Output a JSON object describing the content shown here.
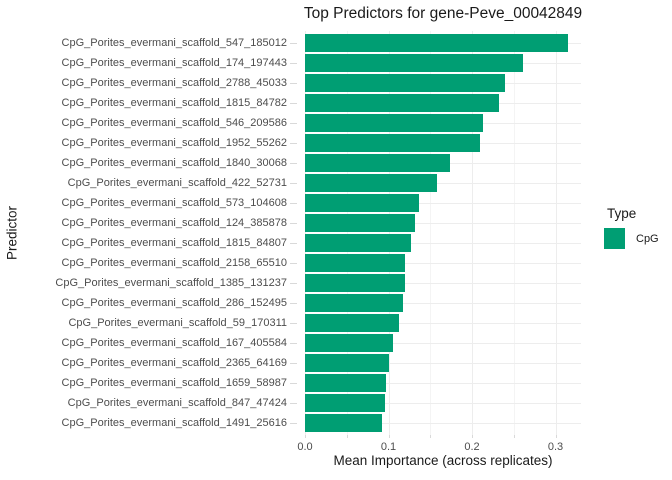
{
  "chart_data": {
    "type": "bar",
    "orientation": "horizontal",
    "title": "Top Predictors for gene-Peve_00042849",
    "xlabel": "Mean Importance (across replicates)",
    "ylabel": "Predictor",
    "xlim": [
      0,
      0.33
    ],
    "x_ticks": [
      0,
      0.1,
      0.2,
      0.3
    ],
    "x_tick_labels": [
      "0.0",
      "0.1",
      "0.2",
      "0.3"
    ],
    "x_minor_ticks": [
      0.05,
      0.15,
      0.25
    ],
    "grid": true,
    "legend_position": "right",
    "legend": {
      "title": "Type",
      "items": [
        {
          "label": "CpG",
          "color": "#009E73"
        }
      ]
    },
    "bar_color": "#009E73",
    "categories": [
      "CpG_Porites_evermani_scaffold_547_185012",
      "CpG_Porites_evermani_scaffold_174_197443",
      "CpG_Porites_evermani_scaffold_2788_45033",
      "CpG_Porites_evermani_scaffold_1815_84782",
      "CpG_Porites_evermani_scaffold_546_209586",
      "CpG_Porites_evermani_scaffold_1952_55262",
      "CpG_Porites_evermani_scaffold_1840_30068",
      "CpG_Porites_evermani_scaffold_422_52731",
      "CpG_Porites_evermani_scaffold_573_104608",
      "CpG_Porites_evermani_scaffold_124_385878",
      "CpG_Porites_evermani_scaffold_1815_84807",
      "CpG_Porites_evermani_scaffold_2158_65510",
      "CpG_Porites_evermani_scaffold_1385_131237",
      "CpG_Porites_evermani_scaffold_286_152495",
      "CpG_Porites_evermani_scaffold_59_170311",
      "CpG_Porites_evermani_scaffold_167_405584",
      "CpG_Porites_evermani_scaffold_2365_64169",
      "CpG_Porites_evermani_scaffold_1659_58987",
      "CpG_Porites_evermani_scaffold_847_47424",
      "CpG_Porites_evermani_scaffold_1491_25616"
    ],
    "values": [
      0.315,
      0.261,
      0.24,
      0.232,
      0.213,
      0.21,
      0.174,
      0.158,
      0.137,
      0.132,
      0.127,
      0.12,
      0.12,
      0.117,
      0.113,
      0.105,
      0.101,
      0.097,
      0.096,
      0.092
    ]
  },
  "colors": {
    "background": "#FFFFFF",
    "grid_major": "#EDEDED",
    "grid_minor": "#F4F4F4",
    "axis_tick": "#D9D9D9",
    "tick_label_text": "#4D4D4D",
    "text": "#1A1A1A",
    "bar": "#009E73"
  }
}
